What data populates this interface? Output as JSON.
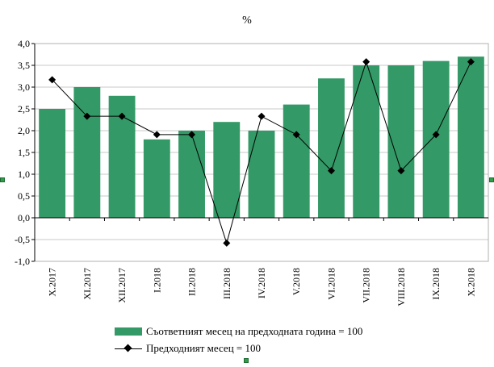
{
  "chart_data": {
    "type": "bar+line",
    "title": "%",
    "categories": [
      "X.2017",
      "XI.2017",
      "XII.2017",
      "I.2018",
      "II.2018",
      "III.2018",
      "IV.2018",
      "V.2018",
      "VI.2018",
      "VII.2018",
      "VIII.2018",
      "IX.2018",
      "X.2018"
    ],
    "series": [
      {
        "name": "Съответният месец на предходната година = 100",
        "type": "bar",
        "color": "#339966",
        "values": [
          2.5,
          3.0,
          2.8,
          1.8,
          2.0,
          2.2,
          2.0,
          2.6,
          3.2,
          3.5,
          3.5,
          3.6,
          3.7
        ]
      },
      {
        "name": "Предходният месец = 100",
        "type": "line",
        "color": "#000000",
        "values": [
          3.17,
          2.33,
          2.33,
          1.91,
          1.91,
          -0.58,
          2.33,
          1.91,
          1.08,
          3.58,
          1.08,
          1.91,
          3.58
        ]
      }
    ],
    "ylim": [
      -1.0,
      4.0
    ],
    "yticks": [
      "4,0",
      "3,5",
      "3,0",
      "2,5",
      "2,0",
      "1,5",
      "1,0",
      "0,5",
      "0,0",
      "-0,5",
      "-1,0"
    ],
    "ytick_values": [
      4.0,
      3.5,
      3.0,
      2.5,
      2.0,
      1.5,
      1.0,
      0.5,
      0.0,
      -0.5,
      -1.0
    ],
    "xlabel": "",
    "ylabel": "",
    "grid": true,
    "legend_position": "bottom"
  }
}
